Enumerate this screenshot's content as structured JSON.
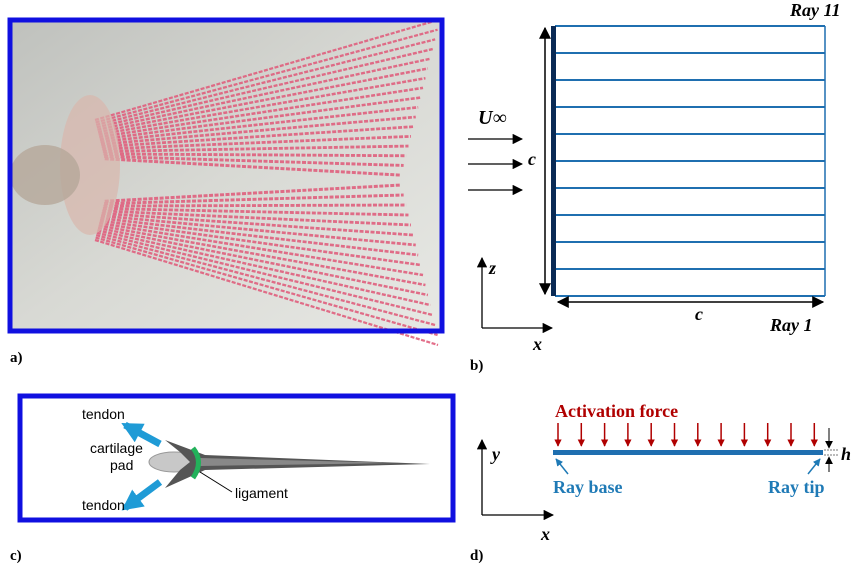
{
  "panels": {
    "a": {
      "label": "a)"
    },
    "b": {
      "label": "b)",
      "ray_top": "Ray 11",
      "ray_bottom": "Ray 1",
      "flow": "U∞",
      "chord_vertical": "c",
      "chord_horizontal": "c",
      "axis_z": "z",
      "axis_x": "x"
    },
    "c": {
      "label": "c)",
      "tendon_top": "tendon",
      "cartilage_line1": "cartilage",
      "cartilage_line2": "pad",
      "ligament": "ligament",
      "tendon_bottom": "tendon"
    },
    "d": {
      "label": "d)",
      "force": "Activation force",
      "axis_y": "y",
      "axis_x": "x",
      "thickness": "h",
      "ray_base": "Ray base",
      "ray_tip": "Ray tip"
    }
  }
}
